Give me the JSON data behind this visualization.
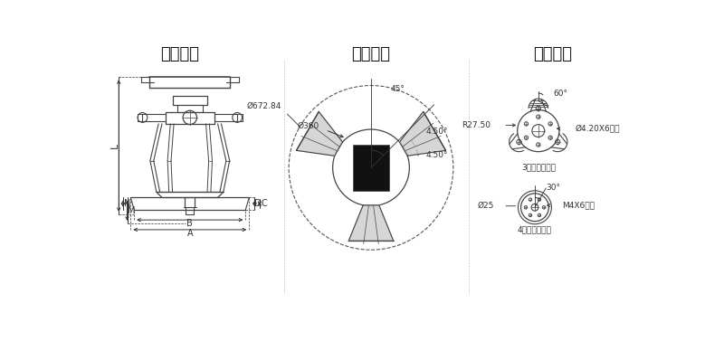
{
  "bg_color": "#ffffff",
  "title1": "行程尺寸",
  "title2": "安装尺寸",
  "title3": "夹具尺寸",
  "title_fontsize": 13,
  "label_fontsize": 7,
  "line_color": "#404040",
  "dim_color": "#333333",
  "drawing_line_color": "#444444",
  "section2_labels": {
    "d360": "Ø360",
    "d672": "Ø672.84",
    "a45": "45°",
    "a450_1": "4.50°",
    "a450_2": "4.50°"
  },
  "section3_top": {
    "angle": "60°",
    "r": "R27.50",
    "hole": "Ø4.20X6均布",
    "label": "3轴夹具安装孔"
  },
  "section3_bot": {
    "d25": "Ø25",
    "angle": "30°",
    "hole": "M4X6均布",
    "label": "4轴夹具安装孔"
  }
}
